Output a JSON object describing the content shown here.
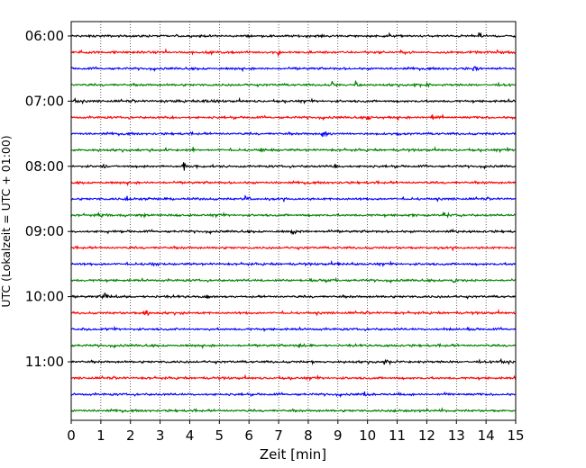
{
  "chart_data": {
    "type": "line",
    "title": "",
    "xlabel": "Zeit  [min]",
    "ylabel": "UTC (Lokalzeit = UTC + 01:00)",
    "xlim": [
      0,
      15
    ],
    "x_ticks": [
      "0",
      "1",
      "2",
      "3",
      "4",
      "5",
      "6",
      "7",
      "8",
      "9",
      "10",
      "11",
      "12",
      "13",
      "14",
      "15"
    ],
    "y_ticks": [
      "06:00",
      "07:00",
      "08:00",
      "09:00",
      "10:00",
      "11:00"
    ],
    "grid": "vertical dotted at each minute",
    "colors": [
      "#000000",
      "#ff0000",
      "#0000ff",
      "#008000"
    ],
    "traces": [
      {
        "start": "06:00",
        "color": "#000000",
        "events": [
          [
            13.8,
            1.0
          ]
        ]
      },
      {
        "start": "06:15",
        "color": "#ff0000",
        "events": [
          [
            7.0,
            1.0
          ],
          [
            4.1,
            0.3
          ]
        ]
      },
      {
        "start": "06:30",
        "color": "#0000ff",
        "events": [
          [
            13.6,
            1.0
          ]
        ]
      },
      {
        "start": "06:45",
        "color": "#008000",
        "events": [
          [
            8.8,
            0.9
          ],
          [
            9.6,
            1.0
          ],
          [
            12.0,
            0.5
          ],
          [
            11.6,
            0.3
          ]
        ]
      },
      {
        "start": "07:00",
        "color": "#000000",
        "events": [
          [
            4.4,
            0.6
          ],
          [
            3.2,
            0.3
          ]
        ]
      },
      {
        "start": "07:15",
        "color": "#ff0000",
        "events": [
          [
            10.0,
            0.6
          ],
          [
            12.2,
            1.0
          ],
          [
            3.3,
            0.3
          ]
        ]
      },
      {
        "start": "07:30",
        "color": "#0000ff",
        "events": [
          [
            8.5,
            1.0
          ]
        ]
      },
      {
        "start": "07:45",
        "color": "#008000",
        "events": [
          [
            4.1,
            0.5
          ],
          [
            6.4,
            0.4
          ]
        ]
      },
      {
        "start": "08:00",
        "color": "#000000",
        "events": [
          [
            3.8,
            1.0
          ],
          [
            8.9,
            0.4
          ],
          [
            2.4,
            0.3
          ],
          [
            1.1,
            0.3
          ]
        ]
      },
      {
        "start": "08:15",
        "color": "#ff0000",
        "events": []
      },
      {
        "start": "08:30",
        "color": "#0000ff",
        "events": [
          [
            1.9,
            0.7
          ],
          [
            5.9,
            1.0
          ],
          [
            6.7,
            0.3
          ]
        ]
      },
      {
        "start": "08:45",
        "color": "#008000",
        "events": [
          [
            0.9,
            0.5
          ],
          [
            2.4,
            0.4
          ],
          [
            12.6,
            0.8
          ],
          [
            11.4,
            0.3
          ]
        ]
      },
      {
        "start": "09:00",
        "color": "#000000",
        "events": [
          [
            7.5,
            0.8
          ],
          [
            12.9,
            0.4
          ],
          [
            1.2,
            0.3
          ]
        ]
      },
      {
        "start": "09:15",
        "color": "#ff0000",
        "events": [
          [
            12.4,
            0.3
          ]
        ]
      },
      {
        "start": "09:30",
        "color": "#0000ff",
        "events": [
          [
            2.7,
            0.5
          ],
          [
            9.0,
            0.3
          ]
        ]
      },
      {
        "start": "09:45",
        "color": "#008000",
        "events": [
          [
            8.6,
            0.5
          ],
          [
            12.9,
            0.8
          ],
          [
            6.4,
            0.3
          ]
        ]
      },
      {
        "start": "10:00",
        "color": "#000000",
        "events": [
          [
            1.1,
            0.9
          ],
          [
            4.6,
            0.3
          ]
        ]
      },
      {
        "start": "10:15",
        "color": "#ff0000",
        "events": [
          [
            2.5,
            1.0
          ],
          [
            3.7,
            0.4
          ]
        ]
      },
      {
        "start": "10:30",
        "color": "#0000ff",
        "events": [
          [
            12.6,
            0.5
          ],
          [
            0.4,
            0.3
          ],
          [
            3.6,
            0.3
          ]
        ]
      },
      {
        "start": "10:45",
        "color": "#008000",
        "events": [
          [
            7.7,
            0.3
          ]
        ]
      },
      {
        "start": "11:00",
        "color": "#000000",
        "events": [
          [
            10.6,
            0.9
          ],
          [
            8.1,
            0.3
          ]
        ]
      },
      {
        "start": "11:15",
        "color": "#ff0000",
        "events": []
      },
      {
        "start": "11:30",
        "color": "#0000ff",
        "events": [
          [
            9.9,
            0.6
          ],
          [
            11.0,
            0.6
          ],
          [
            12.5,
            0.4
          ]
        ]
      },
      {
        "start": "11:45",
        "color": "#008000",
        "events": [
          [
            11.8,
            0.4
          ],
          [
            12.5,
            0.4
          ],
          [
            10.9,
            0.3
          ]
        ]
      }
    ]
  }
}
